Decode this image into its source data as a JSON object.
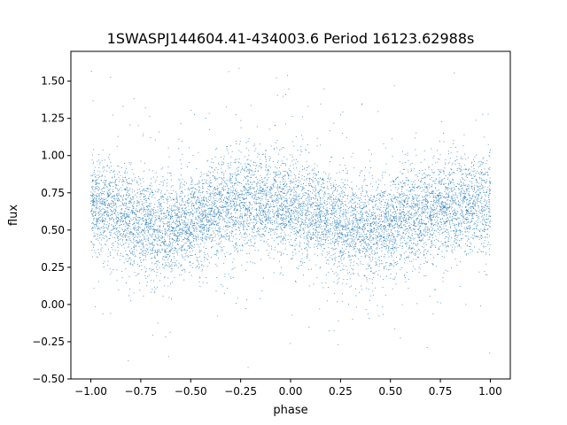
{
  "chart_data": {
    "type": "scatter",
    "title": "1SWASPJ144604.41-434003.6 Period 16123.62988s",
    "xlabel": "phase",
    "ylabel": "flux",
    "xlim": [
      -1.1,
      1.1
    ],
    "ylim": [
      -0.5,
      1.7
    ],
    "xticks": [
      -1.0,
      -0.75,
      -0.5,
      -0.25,
      0.0,
      0.25,
      0.5,
      0.75,
      1.0
    ],
    "xtick_labels": [
      "−1.00",
      "−0.75",
      "−0.50",
      "−0.25",
      "0.00",
      "0.25",
      "0.50",
      "0.75",
      "1.00"
    ],
    "yticks": [
      -0.5,
      -0.25,
      0.0,
      0.25,
      0.5,
      0.75,
      1.0,
      1.25,
      1.5
    ],
    "ytick_labels": [
      "−0.50",
      "−0.25",
      "0.00",
      "0.25",
      "0.50",
      "0.75",
      "1.00",
      "1.25",
      "1.50"
    ],
    "grid": false,
    "legend": "none",
    "marker_color": "#1f77b4",
    "series": [
      {
        "x": [
          -1.0,
          -0.9,
          -0.8,
          -0.7,
          -0.6,
          -0.5,
          -0.4,
          -0.3,
          -0.2,
          -0.1,
          0.0,
          0.1,
          0.2,
          0.3,
          0.4,
          0.5,
          0.6,
          0.7,
          0.8,
          0.9,
          1.0
        ],
        "y": [
          0.66,
          0.64,
          0.58,
          0.53,
          0.51,
          0.55,
          0.61,
          0.66,
          0.68,
          0.67,
          0.65,
          0.62,
          0.58,
          0.52,
          0.5,
          0.53,
          0.59,
          0.64,
          0.67,
          0.67,
          0.66
        ],
        "y_spread": 0.16,
        "y_min": -0.45,
        "y_max": 1.62
      }
    ]
  }
}
